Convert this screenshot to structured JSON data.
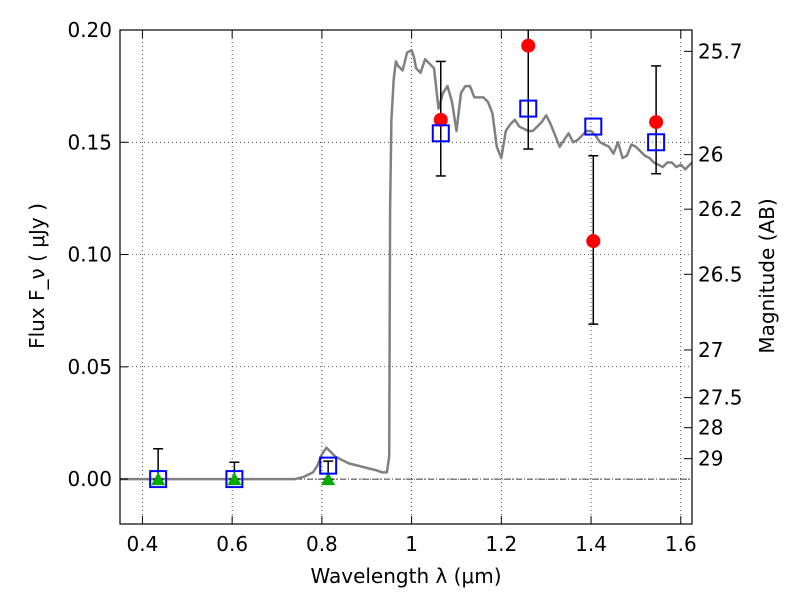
{
  "chart_data": {
    "type": "scatter",
    "xlabel": "Wavelength  λ (μm)",
    "ylabel": "Flux  F_ν  ( μJy )",
    "ylabel_right": "Magnitude (AB)",
    "xlim": [
      0.35,
      1.625
    ],
    "ylim": [
      -0.02,
      0.2
    ],
    "grid": true,
    "x_ticks": [
      0.4,
      0.6,
      0.8,
      1.0,
      1.2,
      1.4,
      1.6
    ],
    "x_tick_labels": [
      "0.4",
      "0.6",
      "0.8",
      "1",
      "1.2",
      "1.4",
      "1.6"
    ],
    "y_ticks": [
      0.0,
      0.05,
      0.1,
      0.15,
      0.2
    ],
    "y_tick_labels": [
      "0.00",
      "0.05",
      "0.10",
      "0.15",
      "0.20"
    ],
    "right_ticks": [
      {
        "label": "25.7",
        "flux": 0.1905
      },
      {
        "label": "26",
        "flux": 0.1445
      },
      {
        "label": "26.2",
        "flux": 0.1202
      },
      {
        "label": "26.5",
        "flux": 0.0912
      },
      {
        "label": "27",
        "flux": 0.0575
      },
      {
        "label": "27.5",
        "flux": 0.0363
      },
      {
        "label": "28",
        "flux": 0.0229
      },
      {
        "label": "29",
        "flux": 0.0091
      }
    ],
    "series": [
      {
        "kind": "line",
        "color": "#808080",
        "x": [
          0.35,
          0.7,
          0.74,
          0.76,
          0.78,
          0.79,
          0.8,
          0.81,
          0.82,
          0.83,
          0.84,
          0.85,
          0.86,
          0.88,
          0.9,
          0.92,
          0.935,
          0.945,
          0.95,
          0.952,
          0.955,
          0.96,
          0.965,
          0.97,
          0.98,
          0.99,
          1.0,
          1.005,
          1.01,
          1.02,
          1.03,
          1.04,
          1.05,
          1.06,
          1.07,
          1.08,
          1.09,
          1.1,
          1.11,
          1.12,
          1.13,
          1.14,
          1.15,
          1.16,
          1.17,
          1.18,
          1.19,
          1.2,
          1.21,
          1.22,
          1.23,
          1.24,
          1.25,
          1.26,
          1.27,
          1.28,
          1.29,
          1.3,
          1.31,
          1.32,
          1.33,
          1.34,
          1.35,
          1.36,
          1.37,
          1.38,
          1.39,
          1.4,
          1.41,
          1.42,
          1.43,
          1.44,
          1.45,
          1.46,
          1.47,
          1.48,
          1.49,
          1.5,
          1.51,
          1.52,
          1.53,
          1.54,
          1.55,
          1.56,
          1.57,
          1.58,
          1.59,
          1.6,
          1.61,
          1.625
        ],
        "y": [
          0.0,
          0.0,
          0.0,
          0.001,
          0.003,
          0.006,
          0.011,
          0.014,
          0.012,
          0.01,
          0.009,
          0.008,
          0.007,
          0.006,
          0.005,
          0.004,
          0.003,
          0.003,
          0.01,
          0.12,
          0.16,
          0.178,
          0.186,
          0.184,
          0.182,
          0.19,
          0.191,
          0.188,
          0.183,
          0.181,
          0.187,
          0.185,
          0.183,
          0.165,
          0.172,
          0.175,
          0.168,
          0.155,
          0.172,
          0.175,
          0.175,
          0.17,
          0.17,
          0.17,
          0.168,
          0.163,
          0.148,
          0.143,
          0.155,
          0.158,
          0.16,
          0.157,
          0.156,
          0.155,
          0.155,
          0.157,
          0.159,
          0.162,
          0.158,
          0.153,
          0.148,
          0.151,
          0.154,
          0.15,
          0.151,
          0.153,
          0.155,
          0.155,
          0.153,
          0.15,
          0.149,
          0.148,
          0.145,
          0.15,
          0.143,
          0.144,
          0.149,
          0.148,
          0.146,
          0.144,
          0.143,
          0.141,
          0.14,
          0.139,
          0.141,
          0.141,
          0.139,
          0.14,
          0.138,
          0.141
        ]
      },
      {
        "kind": "points",
        "marker": "circle",
        "color": "#ff0000",
        "x": [
          1.065,
          1.26,
          1.405,
          1.545
        ],
        "y": [
          0.16,
          0.193,
          0.106,
          0.159
        ],
        "yerr_low": [
          0.135,
          0.147,
          0.069,
          0.136
        ],
        "yerr_high": [
          0.186,
          0.202,
          0.144,
          0.184
        ]
      },
      {
        "kind": "points",
        "marker": "triangle",
        "color": "#00aa00",
        "x": [
          0.435,
          0.605,
          0.814
        ],
        "y": [
          0.0,
          0.0,
          0.0
        ],
        "yerr_low": [
          0.0,
          0.0,
          0.0
        ],
        "yerr_high": [
          0.0135,
          0.0075,
          0.008
        ]
      },
      {
        "kind": "points",
        "marker": "square",
        "color": "#0000ff",
        "x": [
          0.435,
          0.605,
          0.814,
          1.065,
          1.26,
          1.405,
          1.545
        ],
        "y": [
          0.0,
          0.0,
          0.006,
          0.154,
          0.165,
          0.157,
          0.15
        ]
      }
    ]
  }
}
